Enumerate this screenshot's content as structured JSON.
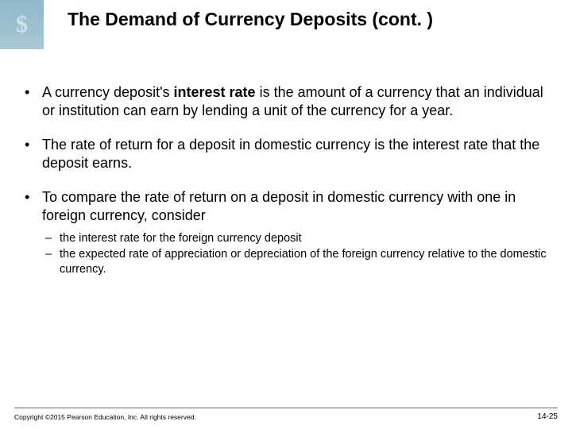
{
  "header": {
    "icon_text": "$",
    "title": "The Demand of Currency Deposits (cont. )"
  },
  "bullets": [
    {
      "pre": "A currency deposit's ",
      "bold": "interest rate",
      "post": " is the amount of a currency that an individual or institution can earn by lending a unit of the currency for a year."
    },
    {
      "pre": "The rate of return for a deposit in domestic currency is the interest rate that the deposit earns.",
      "bold": "",
      "post": ""
    },
    {
      "pre": "To compare the rate of return on a deposit in domestic currency with one in foreign currency, consider",
      "bold": "",
      "post": "",
      "sub": [
        "the interest rate for the foreign currency deposit",
        "the expected rate of appreciation or depreciation of the foreign currency relative to the domestic currency."
      ]
    }
  ],
  "footer": {
    "copyright": "Copyright ©2015 Pearson Education, Inc. All rights reserved.",
    "page": "14-25"
  },
  "colors": {
    "header_band_top": "#8fb8c9",
    "header_band_bottom": "#a8c8d6",
    "text": "#000000",
    "footer_line": "#5a6a78",
    "background": "#ffffff"
  },
  "typography": {
    "title_fontsize": 23,
    "body_fontsize": 18,
    "sub_fontsize": 14.5,
    "footer_fontsize": 8.5,
    "font_family": "Verdana"
  }
}
